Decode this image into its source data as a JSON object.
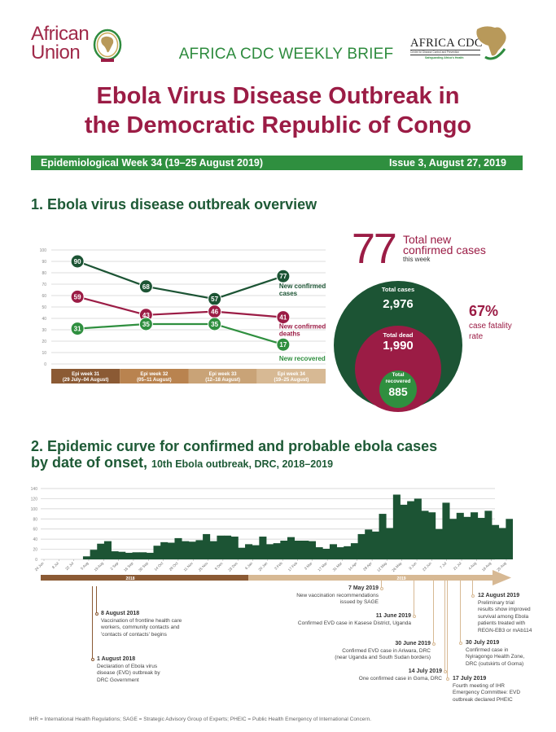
{
  "header": {
    "au_logo_line1": "African",
    "au_logo_line2": "Union",
    "cdc_logo_title": "AFRICA CDC",
    "cdc_logo_subtitle": "Centre for Disease Control and Prevention",
    "cdc_logo_tagline": "Safeguarding Africa's Health",
    "brief_title": "AFRICA CDC WEEKLY BRIEF",
    "title_line1": "Ebola Virus Disease Outbreak in",
    "title_line2": "the Democratic Republic of Congo",
    "week_label": "Epidemiological  Week 34 (19–25 August 2019)",
    "issue_label": "Issue 3, August 27, 2019"
  },
  "colors": {
    "dark_green": "#1c5434",
    "crimson": "#9b1c45",
    "bright_green": "#2f8f3f",
    "brown": "#8b5a34",
    "tan": "#d7b994"
  },
  "section1": {
    "title": "1. Ebola virus disease outbreak overview",
    "big_number": "77",
    "big_number_label1": "Total new",
    "big_number_label2": "confirmed cases",
    "big_number_label3": "this week",
    "total_cases_label": "Total cases",
    "total_cases_value": "2,976",
    "total_dead_label": "Total dead",
    "total_dead_value": "1,990",
    "total_recovered_label1": "Total",
    "total_recovered_label2": "recovered",
    "total_recovered_value": "885",
    "cfr_value": "67%",
    "cfr_label1": "case fatality",
    "cfr_label2": "rate"
  },
  "chart_data": [
    {
      "type": "line",
      "title": "",
      "ylim": [
        0,
        100
      ],
      "yticks": [
        "0",
        "10",
        "20",
        "30",
        "40",
        "50",
        "60",
        "70",
        "80",
        "90",
        "100"
      ],
      "categories": [
        {
          "line1": "Epi week 31",
          "line2": "(29 July–04 August)"
        },
        {
          "line1": "Epi week  32",
          "line2": "(05–11 August)"
        },
        {
          "line1": "Epi week  33",
          "line2": "(12–18 August)"
        },
        {
          "line1": "Epi week 34",
          "line2": "(19–25 August)"
        }
      ],
      "series": [
        {
          "name": "New confirmed cases",
          "label1": "New confirmed",
          "label2": "cases",
          "values": [
            90,
            68,
            57,
            77
          ],
          "color": "#1c5434"
        },
        {
          "name": "New confirmed deaths",
          "label1": "New confirmed",
          "label2": "deaths",
          "values": [
            59,
            43,
            46,
            41
          ],
          "color": "#9b1c45"
        },
        {
          "name": "New recovered",
          "label1": "New recovered",
          "label2": "",
          "values": [
            31,
            35,
            35,
            17
          ],
          "color": "#2f8f3f"
        }
      ],
      "grid": true
    },
    {
      "type": "bar",
      "title": "2. Epidemic curve for confirmed and probable ebola cases",
      "title_line2": "by date of onset,",
      "subtitle": "10th Ebola outbreak, DRC, 2018–2019",
      "ylim": [
        0,
        140
      ],
      "yticks": [
        "0",
        "20",
        "40",
        "60",
        "80",
        "100",
        "120",
        "140"
      ],
      "xtick_labels": [
        "24 Jun",
        "8 Jul",
        "22 Jul",
        "5 Aug",
        "19 Aug",
        "2 Sep",
        "16 Sep",
        "30 Sep",
        "14 Oct",
        "28 Oct",
        "11 Nov",
        "25 Nov",
        "9 Dec",
        "23 Dec",
        "6 Jan",
        "20 Jan",
        "3 Feb",
        "17 Feb",
        "3 Mar",
        "17 Mar",
        "31 Mar",
        "14 Apr",
        "28 Apr",
        "12 May",
        "26 May",
        "9 Jun",
        "23 Jun",
        "7 Jul",
        "21 Jul",
        "4 Aug",
        "18 Aug",
        "25 Aug"
      ],
      "values": [
        0,
        0,
        0,
        0,
        0,
        0,
        6,
        19,
        31,
        36,
        16,
        15,
        13,
        14,
        14,
        13,
        27,
        34,
        33,
        42,
        36,
        35,
        38,
        50,
        36,
        47,
        47,
        45,
        23,
        30,
        28,
        45,
        30,
        32,
        37,
        44,
        37,
        37,
        36,
        24,
        21,
        30,
        24,
        26,
        32,
        50,
        59,
        55,
        90,
        62,
        128,
        108,
        115,
        120,
        96,
        93,
        60,
        112,
        80,
        92,
        84,
        93,
        82,
        96,
        68,
        62,
        80
      ],
      "timeline_years": [
        "2018",
        "2019"
      ],
      "grid": true
    }
  ],
  "timeline": [
    {
      "date": "8 August 2018",
      "text": [
        "Vaccination of frontline health care",
        "workers, community contacts and",
        "'contacts of contacts' begins"
      ]
    },
    {
      "date": "1 August 2018",
      "text": [
        "Declaration of Ebola virus",
        "disease (EVD) outbreak by",
        "DRC Government"
      ]
    },
    {
      "date": "7 May 2019",
      "text": [
        "New vaccination recommendations",
        "issued by SAGE"
      ]
    },
    {
      "date": "11 June 2019",
      "text": [
        "Confirmed EVD case in Kasese District, Uganda"
      ]
    },
    {
      "date": "30 June 2019",
      "text": [
        "Confirmed EVD case in Ariwara, DRC",
        "(near Uganda and South Sudan borders)"
      ]
    },
    {
      "date": "14 July 2019",
      "text": [
        "One confirmed case in Goma, DRC"
      ]
    },
    {
      "date": "17 July 2019",
      "text": [
        "Fourth meeting of IHR",
        "Emergency Committee: EVD",
        "outbreak declared PHEIC"
      ]
    },
    {
      "date": "30 July 2019",
      "text": [
        "Confirmed case in",
        "Nyiragongo Health Zone,",
        "DRC (outskirts of Goma)"
      ]
    },
    {
      "date": "12 August 2019",
      "text": [
        "Preliminary trial",
        "results show improved",
        "survival among Ebola",
        "patients treated with",
        "REGN-EB3 or mAb114"
      ]
    }
  ],
  "footnote": "IHR = International Health Regulations; SAGE = Strategic Advisory Group of Experts; PHEIC = Public Health Emergency of International Concern."
}
